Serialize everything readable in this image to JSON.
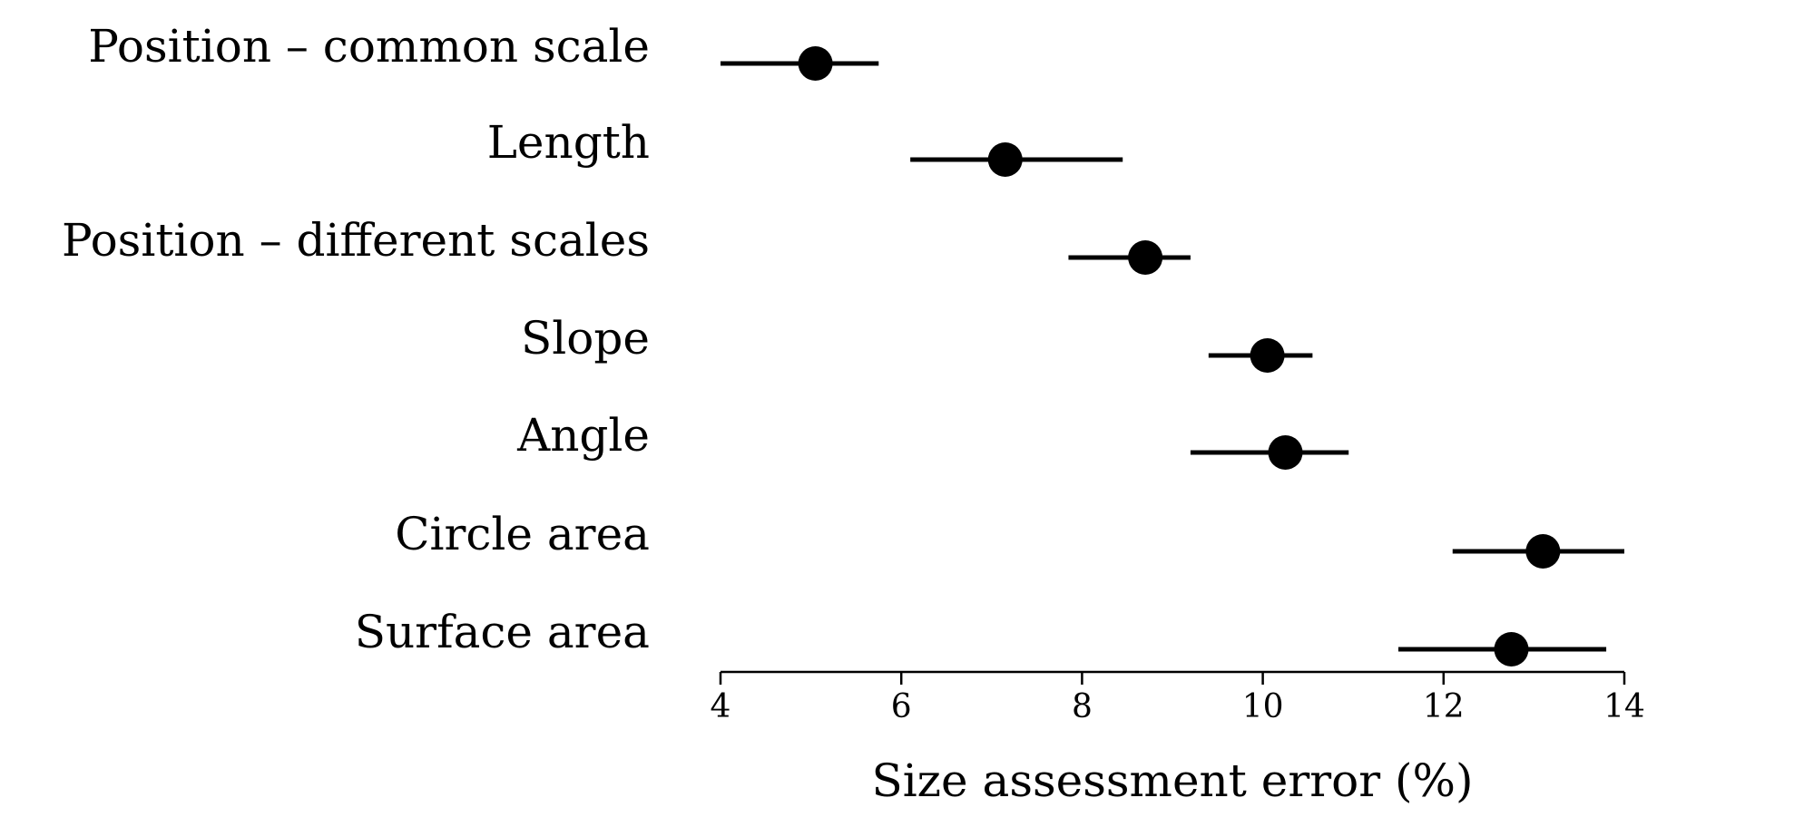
{
  "chart_data": {
    "type": "scatter",
    "title": "",
    "xlabel": "Size assessment error (%)",
    "ylabel": "",
    "xlim": [
      4,
      14
    ],
    "xticks": [
      4,
      6,
      8,
      10,
      12,
      14
    ],
    "grid": false,
    "legend": "none",
    "marker_color": "#000000",
    "categories": [
      "Position – common scale",
      "Length",
      "Position – different scales",
      "Slope",
      "Angle",
      "Circle area",
      "Surface area"
    ],
    "points": [
      {
        "category": "Position – common scale",
        "value": 5.05,
        "low": 4.0,
        "high": 5.75
      },
      {
        "category": "Length",
        "value": 7.15,
        "low": 6.1,
        "high": 8.45
      },
      {
        "category": "Position – different scales",
        "value": 8.7,
        "low": 7.85,
        "high": 9.2
      },
      {
        "category": "Slope",
        "value": 10.05,
        "low": 9.4,
        "high": 10.55
      },
      {
        "category": "Angle",
        "value": 10.25,
        "low": 9.2,
        "high": 10.95
      },
      {
        "category": "Circle area",
        "value": 13.1,
        "low": 12.1,
        "high": 14.0
      },
      {
        "category": "Surface area",
        "value": 12.75,
        "low": 11.5,
        "high": 13.8
      }
    ]
  }
}
